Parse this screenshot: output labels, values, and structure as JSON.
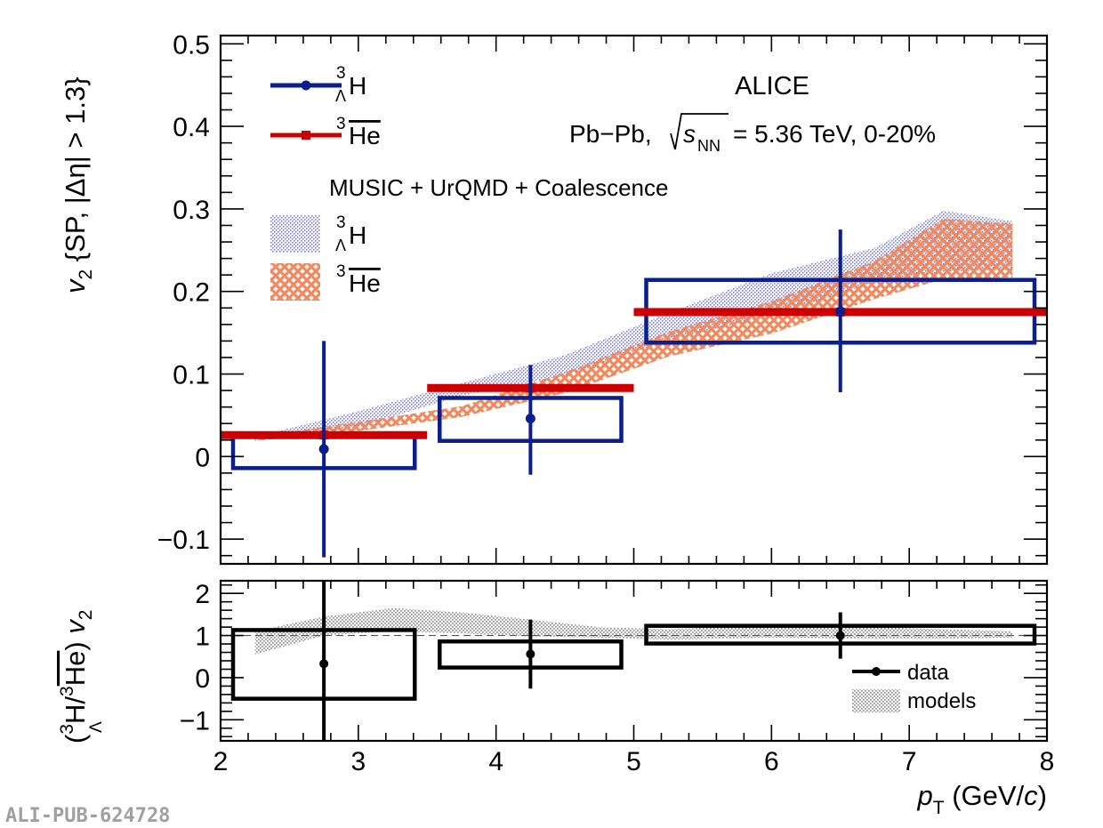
{
  "chart_data": [
    {
      "type": "line",
      "panel": "top",
      "ylabel": "v2 {SP, |Δη| > 1.3}",
      "xlabel": "pT (GeV/c)",
      "xlim": [
        2,
        8
      ],
      "ylim": [
        -0.13,
        0.51
      ],
      "yticks": [
        -0.1,
        0,
        0.1,
        0.2,
        0.3,
        0.4,
        0.5
      ],
      "yticklabels": [
        "−0.1",
        "0",
        "0.1",
        "0.2",
        "0.3",
        "0.4",
        "0.5"
      ],
      "experiment": "ALICE",
      "collision_label": "Pb−Pb,",
      "energy_label": "= 5.36 TeV, 0-20%",
      "model_title": "MUSIC + UrQMD + Coalescence",
      "legend": {
        "hyper": "H",
        "antihe": "He",
        "mass_number": "3",
        "lambda": "Λ",
        "sqrt_s": "s",
        "nn": "NN"
      },
      "series": [
        {
          "name": "hypertriton",
          "color": "#0a1e8c",
          "x": [
            2.75,
            4.25,
            6.5
          ],
          "y": [
            0.009,
            0.046,
            0.176
          ],
          "xerr_low": [
            0.75,
            0.75,
            1.5
          ],
          "xerr_high": [
            0.75,
            0.75,
            1.5
          ],
          "stat_low": [
            0.131,
            0.068,
            0.098
          ],
          "stat_high": [
            0.131,
            0.065,
            0.099
          ],
          "syst_box_low": [
            -0.014,
            0.019,
            0.138
          ],
          "syst_box_high": [
            0.027,
            0.071,
            0.214
          ]
        },
        {
          "name": "anti-helium-3",
          "color": "#cc0000",
          "x": [
            2.75,
            4.25,
            6.5
          ],
          "y": [
            0.026,
            0.083,
            0.175
          ],
          "xerr_low": [
            0.75,
            0.75,
            1.5
          ],
          "xerr_high": [
            0.75,
            0.75,
            1.5
          ]
        }
      ],
      "model_bands": [
        {
          "name": "hypertriton model",
          "color": "#8a8ac8",
          "x": [
            2.25,
            3.0,
            3.75,
            4.5,
            5.25,
            6.0,
            6.75,
            7.25,
            7.75
          ],
          "low": [
            0.019,
            0.036,
            0.074,
            0.098,
            0.141,
            0.171,
            0.211,
            0.224,
            0.226
          ],
          "high": [
            0.024,
            0.055,
            0.089,
            0.123,
            0.174,
            0.222,
            0.253,
            0.298,
            0.285
          ]
        },
        {
          "name": "anti-helium-3 model",
          "color": "#f0966e",
          "x": [
            2.25,
            3.0,
            3.75,
            4.5,
            5.25,
            6.0,
            6.75,
            7.25,
            7.75
          ],
          "low": [
            0.019,
            0.031,
            0.048,
            0.077,
            0.121,
            0.149,
            0.191,
            0.215,
            0.217
          ],
          "high": [
            0.024,
            0.042,
            0.061,
            0.102,
            0.151,
            0.188,
            0.237,
            0.288,
            0.282
          ]
        }
      ]
    },
    {
      "type": "line",
      "panel": "ratio",
      "ylabel": "(3ΛH / 3He) v2",
      "xlabel": "pT (GeV/c)",
      "xlim": [
        2,
        8
      ],
      "ylim": [
        -1.5,
        2.3
      ],
      "yticks": [
        -1,
        0,
        1,
        2
      ],
      "yticklabels": [
        "−1",
        "0",
        "1",
        "2"
      ],
      "xticks": [
        2,
        3,
        4,
        5,
        6,
        7,
        8
      ],
      "xticklabels": [
        "2",
        "3",
        "4",
        "5",
        "6",
        "7",
        "8"
      ],
      "reference_line": 1,
      "legend": [
        "data",
        "models"
      ],
      "series": [
        {
          "name": "data",
          "color": "#000000",
          "x": [
            2.75,
            4.25,
            6.5
          ],
          "y": [
            0.33,
            0.56,
            1.0
          ],
          "xerr_low": [
            0.75,
            0.75,
            1.5
          ],
          "xerr_high": [
            0.75,
            0.75,
            1.5
          ],
          "stat_low": [
            1.85,
            0.82,
            0.55
          ],
          "stat_high": [
            1.97,
            0.82,
            0.55
          ],
          "syst_box_low": [
            -0.5,
            0.24,
            0.81
          ],
          "syst_box_high": [
            1.13,
            0.86,
            1.23
          ]
        }
      ],
      "model_band": {
        "name": "models",
        "color": "#a8a8a8",
        "x": [
          2.25,
          2.75,
          3.25,
          3.75,
          4.25,
          4.75,
          5.25,
          6.0,
          6.75,
          7.25,
          7.75
        ],
        "low": [
          0.55,
          1.0,
          1.1,
          1.05,
          0.98,
          0.95,
          0.9,
          0.95,
          0.92,
          0.92,
          0.95
        ],
        "high": [
          1.1,
          1.45,
          1.65,
          1.55,
          1.38,
          1.2,
          1.15,
          1.25,
          1.2,
          1.15,
          1.1
        ]
      }
    }
  ],
  "watermark": "ALI-PUB-624728"
}
